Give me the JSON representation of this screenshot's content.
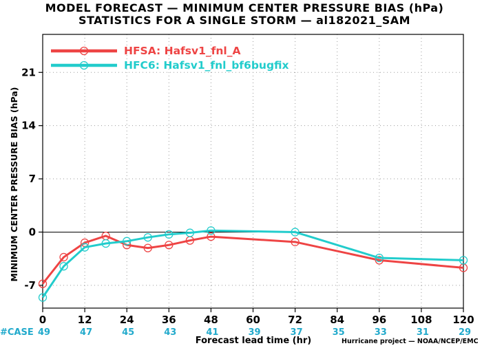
{
  "chart_data": {
    "type": "line",
    "title_lines": [
      "MODEL FORECAST — MINIMUM CENTER PRESSURE BIAS (hPa)",
      "STATISTICS FOR A SINGLE STORM — al182021_SAM"
    ],
    "ylabel": "MINIMUM CENTER PRESSURE BIAS (hPa)",
    "xlabel": "Forecast lead time (hr)",
    "credit": "Hurricane project — NOAA/NCEP/EMC",
    "xlim": [
      0,
      120
    ],
    "ylim": [
      -10,
      26
    ],
    "x_ticks": [
      0,
      12,
      24,
      36,
      48,
      60,
      72,
      84,
      96,
      108,
      120
    ],
    "y_ticks": [
      -7,
      0,
      7,
      14,
      21
    ],
    "grid": true,
    "legend_position": "top-left",
    "series": [
      {
        "name": "HFSA: Hafsv1_fnl_A",
        "color": "#ee4444",
        "x": [
          0,
          6,
          12,
          18,
          24,
          30,
          36,
          42,
          48,
          72,
          96,
          120
        ],
        "y": [
          -6.8,
          -3.3,
          -1.4,
          -0.5,
          -1.7,
          -2.1,
          -1.7,
          -1.1,
          -0.6,
          -1.3,
          -3.7,
          -4.7
        ]
      },
      {
        "name": "HFC6: Hafsv1_fnl_bf6bugfix",
        "color": "#22cccc",
        "x": [
          0,
          6,
          12,
          18,
          24,
          30,
          36,
          42,
          48,
          72,
          96,
          120
        ],
        "y": [
          -8.6,
          -4.5,
          -2.0,
          -1.5,
          -1.2,
          -0.7,
          -0.3,
          -0.1,
          0.2,
          0.0,
          -3.4,
          -3.7
        ]
      }
    ],
    "case_label": "#CASE",
    "case_x": [
      0,
      12,
      24,
      36,
      48,
      60,
      72,
      84,
      96,
      108,
      120
    ],
    "case_counts": [
      "49",
      "47",
      "45",
      "43",
      "41",
      "39",
      "37",
      "35",
      "33",
      "31",
      "29"
    ],
    "case_color": "#22aacc"
  }
}
